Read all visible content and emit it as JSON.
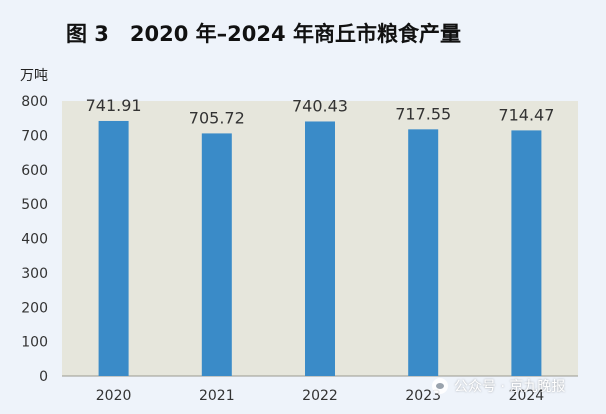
{
  "chart_data": {
    "type": "bar",
    "title": "图 3　2020 年–2024 年商丘市粮食产量",
    "ylabel": "万吨",
    "xlabel": "",
    "categories": [
      "2020",
      "2021",
      "2022",
      "2023",
      "2024"
    ],
    "values": [
      741.91,
      705.72,
      740.43,
      717.55,
      714.47
    ],
    "data_labels": [
      "741.91",
      "705.72",
      "740.43",
      "717.55",
      "714.47"
    ],
    "ylim": [
      0,
      800
    ],
    "yticks": [
      0,
      100,
      200,
      300,
      400,
      500,
      600,
      700,
      800
    ],
    "grid": false,
    "legend": "none",
    "colors": {
      "bar": "#3a8bc8",
      "plot_bg": "#e6e6dc",
      "page_bg": "#eef3fa",
      "axis_text": "#333333",
      "label_text": "#333333"
    }
  },
  "watermark": {
    "text": "公众号 · 京九晚报",
    "icon": "wechat-icon"
  }
}
